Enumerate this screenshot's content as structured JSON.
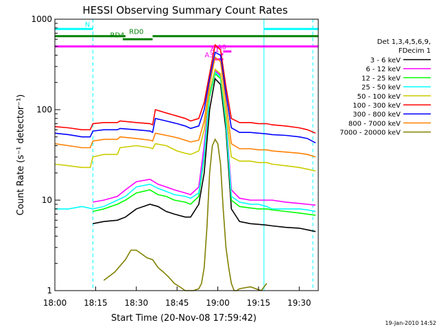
{
  "chart_data": {
    "type": "line",
    "title": "HESSI Observing Summary Count Rates",
    "xlabel": "Start Time (20-Nov-08 17:59:42)",
    "ylabel": "Count Rate (s⁻¹ detector⁻¹)",
    "x_ticks": [
      "18:00",
      "18:15",
      "18:30",
      "18:45",
      "19:00",
      "19:15",
      "19:30"
    ],
    "x_tick_minutes": [
      0,
      15,
      30,
      45,
      60,
      75,
      90
    ],
    "xlim_minutes": [
      0,
      97
    ],
    "ylim": [
      1,
      1000
    ],
    "yscale": "log",
    "y_ticks": [
      1,
      10,
      100,
      1000
    ],
    "y_tick_labels": [
      "1",
      "10",
      "100",
      "1000"
    ],
    "legend_header": [
      "Det 1,3,4,5,6,9,",
      "FDecim 1"
    ],
    "legend_position": "right",
    "footer": "19-Jan-2010 14:52",
    "series": [
      {
        "name": "3 - 6 keV",
        "color": "#000000",
        "x": [
          14,
          18,
          23,
          26,
          30,
          35,
          38,
          41,
          44,
          48,
          50,
          53,
          55,
          57,
          59,
          61,
          63,
          65,
          68,
          72,
          75,
          78,
          80,
          85,
          90,
          93,
          96
        ],
        "y": [
          5.5,
          5.8,
          6,
          6.5,
          8,
          9,
          8.5,
          7.5,
          7,
          6.5,
          6.5,
          9,
          20,
          100,
          220,
          190,
          60,
          8,
          5.8,
          5.5,
          5.4,
          5.3,
          5.2,
          5,
          4.9,
          4.7,
          4.5
        ]
      },
      {
        "name": "6 - 12 keV",
        "color": "#ff00ff",
        "x": [
          14,
          18,
          23,
          26,
          30,
          35,
          38,
          41,
          44,
          48,
          50,
          53,
          55,
          57,
          59,
          61,
          63,
          65,
          68,
          72,
          75,
          78,
          80,
          85,
          90,
          93,
          96
        ],
        "y": [
          9.5,
          10,
          11,
          13,
          16,
          17,
          15,
          14,
          13,
          12,
          11.5,
          14,
          40,
          160,
          270,
          240,
          80,
          13,
          10.5,
          10,
          10,
          10,
          10,
          9.5,
          9.2,
          9,
          8.8
        ]
      },
      {
        "name": "12 - 25 keV",
        "color": "#00ff00",
        "x": [
          14,
          18,
          23,
          26,
          30,
          35,
          38,
          41,
          44,
          48,
          50,
          53,
          55,
          57,
          59,
          61,
          63,
          65,
          68,
          72,
          75,
          78,
          80,
          85,
          90,
          93,
          96
        ],
        "y": [
          7.5,
          8,
          9,
          10,
          12,
          13,
          11.5,
          11,
          10,
          9.5,
          9,
          11,
          30,
          140,
          250,
          220,
          70,
          10,
          8.5,
          8.2,
          8,
          8,
          7.8,
          7.5,
          7.2,
          7,
          6.8
        ]
      },
      {
        "name": "25 - 50 keV",
        "color": "#00ffff",
        "x": [
          0,
          5,
          10,
          14,
          18,
          23,
          26,
          30,
          35,
          38,
          41,
          44,
          48,
          50,
          53,
          55,
          57,
          59,
          61,
          63,
          65,
          68,
          72,
          75,
          78,
          80,
          85,
          90,
          93,
          96
        ],
        "y": [
          8,
          8,
          8.5,
          8,
          8.5,
          10,
          11,
          14,
          15,
          13.5,
          12.5,
          11.5,
          11,
          10.5,
          12,
          32,
          150,
          260,
          230,
          75,
          11,
          9.5,
          9,
          9,
          8.5,
          8,
          8,
          8,
          7.8,
          7.5
        ]
      },
      {
        "name": "50 - 100 keV",
        "color": "#cccc00",
        "x": [
          0,
          5,
          10,
          13,
          14,
          18,
          23,
          24,
          30,
          35,
          36,
          37,
          41,
          45,
          48,
          50,
          53,
          55,
          57,
          59,
          61,
          63,
          65,
          68,
          72,
          75,
          78,
          80,
          85,
          90,
          93,
          96
        ],
        "y": [
          25,
          24,
          23,
          23,
          30,
          32,
          32,
          38,
          40,
          38,
          37,
          42,
          40,
          35,
          33,
          32,
          35,
          60,
          160,
          280,
          250,
          90,
          30,
          27,
          27,
          26,
          26,
          25,
          24,
          23,
          22,
          21
        ]
      },
      {
        "name": "100 - 300 keV",
        "color": "#ff0000",
        "x": [
          0,
          5,
          10,
          13,
          14,
          18,
          23,
          24,
          30,
          35,
          36,
          37,
          41,
          45,
          48,
          50,
          53,
          55,
          57,
          59,
          61,
          63,
          65,
          68,
          72,
          75,
          78,
          80,
          85,
          90,
          93,
          96
        ],
        "y": [
          65,
          63,
          60,
          60,
          70,
          72,
          72,
          75,
          72,
          70,
          68,
          100,
          92,
          85,
          80,
          75,
          80,
          120,
          250,
          520,
          460,
          180,
          80,
          72,
          72,
          70,
          70,
          68,
          66,
          63,
          60,
          55
        ]
      },
      {
        "name": "300 - 800 keV",
        "color": "#0000ff",
        "x": [
          0,
          5,
          10,
          13,
          14,
          18,
          23,
          24,
          30,
          35,
          36,
          37,
          41,
          45,
          48,
          50,
          53,
          55,
          57,
          59,
          61,
          63,
          65,
          68,
          72,
          75,
          78,
          80,
          85,
          90,
          93,
          96
        ],
        "y": [
          55,
          53,
          50,
          50,
          58,
          60,
          60,
          62,
          60,
          58,
          56,
          80,
          75,
          70,
          66,
          62,
          66,
          100,
          220,
          430,
          400,
          150,
          63,
          56,
          56,
          55,
          54,
          53,
          52,
          50,
          48,
          43
        ]
      },
      {
        "name": "800 - 7000 keV",
        "color": "#ff8000",
        "x": [
          0,
          5,
          10,
          13,
          14,
          18,
          23,
          24,
          30,
          35,
          36,
          37,
          41,
          45,
          48,
          50,
          53,
          55,
          57,
          59,
          61,
          63,
          65,
          68,
          72,
          75,
          78,
          80,
          85,
          90,
          93,
          96
        ],
        "y": [
          42,
          40,
          38,
          38,
          45,
          47,
          47,
          50,
          48,
          46,
          45,
          55,
          52,
          49,
          46,
          44,
          46,
          75,
          190,
          380,
          340,
          120,
          42,
          37,
          37,
          36,
          36,
          35,
          34,
          33,
          32,
          30
        ]
      },
      {
        "name": "7000 - 20000 keV",
        "color": "#808000",
        "x": [
          18,
          22,
          26,
          28,
          30,
          34,
          36,
          38,
          40,
          42,
          44,
          46,
          48,
          51,
          53,
          54,
          55,
          56,
          57,
          58,
          59,
          60,
          61,
          62,
          63,
          64,
          65,
          66,
          67,
          68,
          72,
          76,
          78
        ],
        "y": [
          1.3,
          1.6,
          2.2,
          2.8,
          2.8,
          2.3,
          2.2,
          1.8,
          1.6,
          1.4,
          1.2,
          1.1,
          1.0,
          1.0,
          1.05,
          1.2,
          1.8,
          5,
          20,
          40,
          47,
          42,
          25,
          8,
          3,
          1.8,
          1.2,
          1.0,
          1.0,
          1.05,
          1.1,
          1.0,
          1.2
        ]
      }
    ],
    "attenuator_bars": [
      {
        "label": "N",
        "color": "#00ffff",
        "segments": [
          [
            0,
            14
          ],
          [
            77,
            97
          ]
        ],
        "level": 780
      },
      {
        "label": "RD0",
        "color": "#008000",
        "segments": [
          [
            0,
            26
          ],
          [
            36,
            97
          ]
        ],
        "level": 650
      },
      {
        "label": "RD4",
        "color": "#008000",
        "segments": [
          [
            25,
            36
          ]
        ],
        "level": 600
      },
      {
        "label": "",
        "color": "#ff00ff",
        "segments": [
          [
            0,
            97
          ]
        ],
        "level": 500
      },
      {
        "label": "A0",
        "color": "#ff00ff",
        "segments": [
          [
            62,
            65
          ]
        ],
        "level": 440
      },
      {
        "label": "A1",
        "color": "#ff00ff",
        "segments": [
          [
            61,
            62
          ]
        ],
        "level": 410
      },
      {
        "label": "A3",
        "color": "#ff00ff",
        "segments": [
          [
            59,
            62
          ]
        ],
        "level": 360
      }
    ],
    "vertical_markers": [
      {
        "color": "#00ffff",
        "style": "solid",
        "x": [
          0,
          77
        ]
      },
      {
        "color": "#00ffff",
        "style": "dashed",
        "x": [
          14,
          95
        ]
      }
    ]
  }
}
